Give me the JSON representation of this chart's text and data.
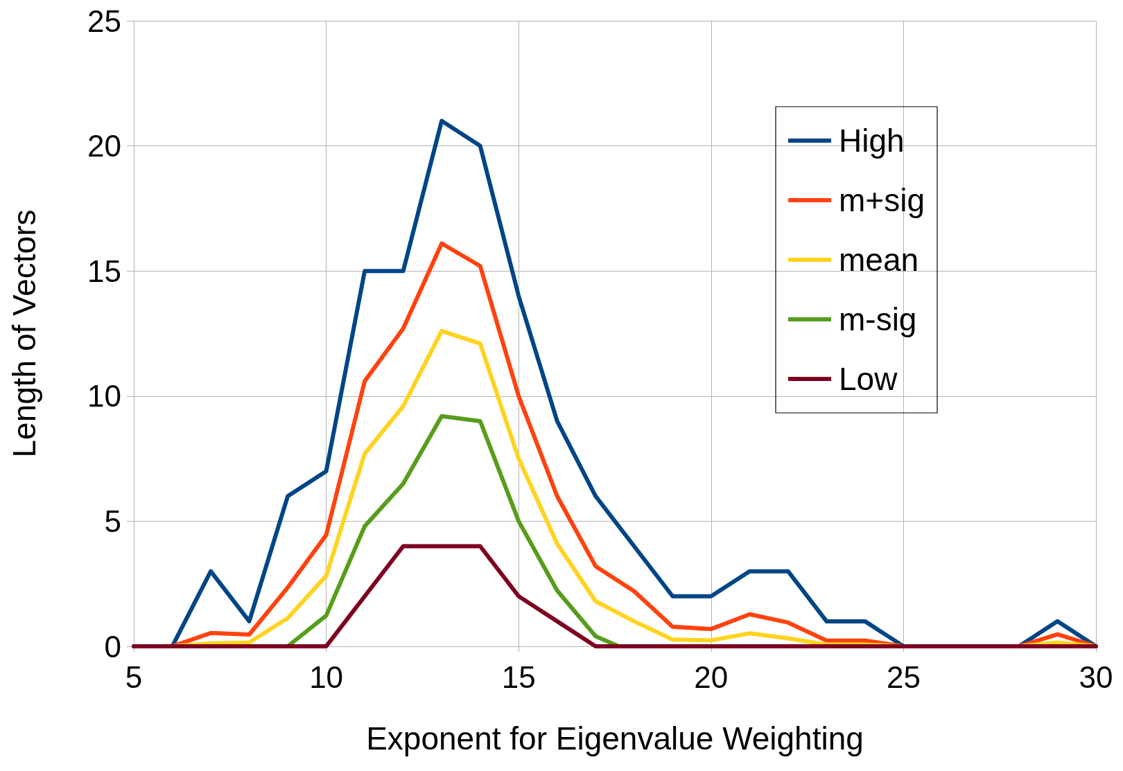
{
  "chart_data": {
    "type": "line",
    "xlabel": "Exponent for Eigenvalue Weighting",
    "ylabel": "Length of Vectors",
    "x": [
      5,
      6,
      7,
      8,
      9,
      10,
      11,
      12,
      13,
      14,
      15,
      16,
      17,
      18,
      19,
      20,
      21,
      22,
      23,
      24,
      25,
      26,
      27,
      28,
      29,
      30
    ],
    "series": [
      {
        "name": "High",
        "color": "#004586",
        "values": [
          0,
          0,
          3,
          1,
          6,
          7,
          15,
          15,
          21,
          20,
          14,
          9,
          6,
          4,
          2,
          2,
          3,
          3,
          1,
          1,
          0,
          0,
          0,
          0,
          1,
          0
        ]
      },
      {
        "name": "m+sig",
        "color": "#ff420e",
        "values": [
          null,
          0,
          0.53,
          0.47,
          2.35,
          4.45,
          10.6,
          12.7,
          16.1,
          15.2,
          10,
          6,
          3.2,
          2.2,
          0.78,
          0.69,
          1.28,
          0.95,
          0.23,
          0.23,
          0,
          0,
          0,
          0,
          0.48,
          0
        ]
      },
      {
        "name": "mean",
        "color": "#ffd320",
        "values": [
          null,
          0,
          0.12,
          0.15,
          1.13,
          2.82,
          7.7,
          9.6,
          12.6,
          12.1,
          7.5,
          4.1,
          1.8,
          1,
          0.27,
          0.24,
          0.52,
          0.32,
          0.07,
          0.07,
          0,
          0,
          0,
          0,
          0.15,
          0
        ]
      },
      {
        "name": "m-sig",
        "color": "#579d1c",
        "x": [
          9,
          10,
          11,
          12,
          13,
          14,
          15,
          16,
          17,
          17.6
        ],
        "values": [
          0,
          1.23,
          4.8,
          6.5,
          9.2,
          9,
          5,
          2.23,
          0.4,
          0
        ]
      },
      {
        "name": "Low",
        "color": "#7e0021",
        "values": [
          0,
          0,
          0,
          0,
          0,
          0,
          2,
          4,
          4,
          4,
          2,
          1,
          0,
          0,
          0,
          0,
          0,
          0,
          0,
          0,
          0,
          0,
          0,
          0,
          0,
          0
        ]
      }
    ],
    "xlim": [
      5,
      30
    ],
    "xticks": [
      5,
      10,
      15,
      20,
      25,
      30
    ],
    "ylim": [
      0,
      25
    ],
    "yticks": [
      0,
      5,
      10,
      15,
      20,
      25
    ],
    "grid": true,
    "legend": "top right",
    "marker": "none",
    "line_style": "solid"
  }
}
